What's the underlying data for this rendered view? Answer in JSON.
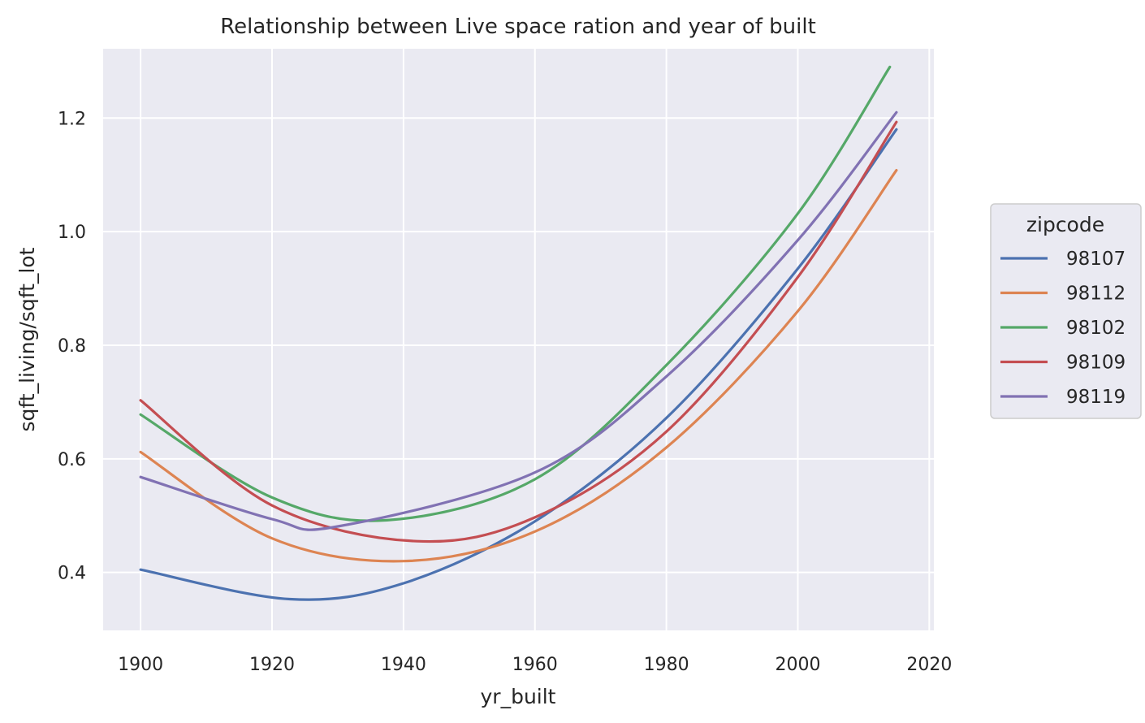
{
  "chart_data": {
    "type": "line",
    "title": "Relationship between Live space ration and year of built",
    "xlabel": "yr_built",
    "ylabel": "sqft_living/sqft_lot",
    "xlim": [
      1894.3,
      2020.7
    ],
    "ylim": [
      0.298,
      1.322
    ],
    "xticks": [
      1900,
      1920,
      1940,
      1960,
      1980,
      2000,
      2020
    ],
    "yticks": [
      0.4,
      0.6,
      0.8,
      1.0,
      1.2
    ],
    "xtick_labels": [
      "1900",
      "1920",
      "1940",
      "1960",
      "1980",
      "2000",
      "2020"
    ],
    "ytick_labels": [
      "0.4",
      "0.6",
      "0.8",
      "1.0",
      "1.2"
    ],
    "grid": true,
    "legend": {
      "title": "zipcode",
      "position": "right"
    },
    "series": [
      {
        "name": "98107",
        "color": "#4c72b0",
        "x": [
          1900,
          1922.7,
          1940,
          1960,
          1980,
          2000,
          2015
        ],
        "values": [
          0.405,
          0.353,
          0.381,
          0.49,
          0.672,
          0.935,
          1.18
        ]
      },
      {
        "name": "98112",
        "color": "#dd8452",
        "x": [
          1900,
          1920,
          1940,
          1960,
          1980,
          2000,
          2015
        ],
        "values": [
          0.612,
          0.46,
          0.42,
          0.472,
          0.62,
          0.86,
          1.108
        ]
      },
      {
        "name": "98102",
        "color": "#55a868",
        "x": [
          1900,
          1920,
          1937.5,
          1960,
          1980,
          2000,
          2014
        ],
        "values": [
          0.678,
          0.532,
          0.492,
          0.564,
          0.765,
          1.032,
          1.29
        ]
      },
      {
        "name": "98109",
        "color": "#c44e52",
        "x": [
          1900,
          1920,
          1942,
          1960,
          1980,
          2000,
          2015
        ],
        "values": [
          0.703,
          0.518,
          0.455,
          0.497,
          0.648,
          0.92,
          1.193
        ]
      },
      {
        "name": "98119",
        "color": "#8172b3",
        "x": [
          1900,
          1920,
          1930,
          1960,
          1980,
          2000,
          2015
        ],
        "values": [
          0.568,
          0.494,
          0.481,
          0.576,
          0.745,
          0.985,
          1.21
        ]
      }
    ]
  }
}
